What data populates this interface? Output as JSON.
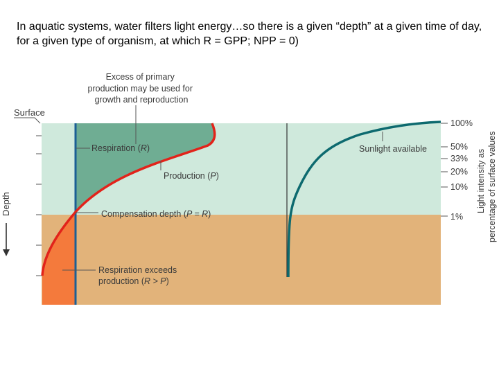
{
  "heading": "In aquatic systems, water filters light energy…so there is a given “depth” at a given time of day, for a given type of organism, at which R = GPP; NPP = 0)",
  "diagram": {
    "surface_label": "Surface",
    "depth_axis_label": "Depth",
    "excess_label": [
      "Excess of primary",
      "production may be used for",
      "growth and reproduction"
    ],
    "respiration_label": "Respiration (",
    "respiration_symbol": "R",
    "production_label": "Production (",
    "production_symbol": "P",
    "compensation_label": "Compensation depth (",
    "compensation_symbol": "P = R",
    "exceeds_label_line1": "Respiration exceeds",
    "exceeds_label_line2": "production (",
    "exceeds_symbol": "R > P",
    "sunlight_label": "Sunlight available",
    "light_ticks": [
      "100%",
      "50%",
      "33%",
      "20%",
      "10%",
      "1%"
    ],
    "right_axis_label": [
      "Light intensity as",
      "percentage of surface values"
    ],
    "colors": {
      "photic_zone": "#cfe9dc",
      "aphotic_zone": "#e2b37a",
      "excess_area": "#6fad93",
      "deficit_area": "#f47a3c",
      "production_curve": "#e2231a",
      "respiration_line": "#1b5f95",
      "sunlight_curve": "#0d6a6f"
    }
  }
}
